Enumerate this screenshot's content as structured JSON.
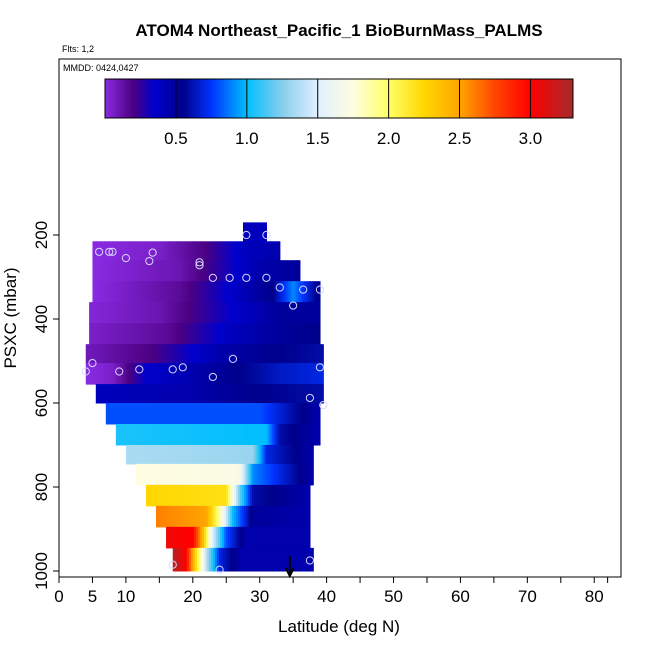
{
  "chart_data": {
    "type": "heatmap",
    "title": "ATOM4 Northeast_Pacific_1 BioBurnMass_PALMS",
    "flights_label": "Flts: 1,2",
    "dates_label": "MMDD: 0424,0427",
    "xlabel": "Latitude (deg N)",
    "ylabel": "PSXC (mbar)",
    "xlim": [
      0,
      84
    ],
    "ylim": [
      1010,
      0
    ],
    "x_ticks": [
      0,
      5,
      10,
      20,
      30,
      40,
      50,
      60,
      70,
      80
    ],
    "x_minor_ticks": [
      15,
      25,
      35,
      45,
      55,
      65,
      75,
      82
    ],
    "y_ticks": [
      200,
      400,
      600,
      800,
      1000
    ],
    "colorbar": {
      "min": 0.0,
      "max": 3.3,
      "ticks": [
        0.5,
        1.0,
        1.5,
        2.0,
        2.5,
        3.0
      ],
      "tick_labels": [
        "0.5",
        "1.0",
        "1.5",
        "2.0",
        "2.5",
        "3.0"
      ],
      "stops": [
        {
          "v": 0.0,
          "c": "#8a2be2"
        },
        {
          "v": 0.2,
          "c": "#4b0082"
        },
        {
          "v": 0.35,
          "c": "#0000cd"
        },
        {
          "v": 0.55,
          "c": "#00008b"
        },
        {
          "v": 0.75,
          "c": "#0033ff"
        },
        {
          "v": 1.0,
          "c": "#00bfff"
        },
        {
          "v": 1.25,
          "c": "#87ceeb"
        },
        {
          "v": 1.5,
          "c": "#e0f0ff"
        },
        {
          "v": 1.75,
          "c": "#fffde0"
        },
        {
          "v": 2.0,
          "c": "#ffff66"
        },
        {
          "v": 2.25,
          "c": "#ffd700"
        },
        {
          "v": 2.5,
          "c": "#ffa500"
        },
        {
          "v": 2.75,
          "c": "#ff4500"
        },
        {
          "v": 3.0,
          "c": "#ff0000"
        },
        {
          "v": 3.3,
          "c": "#a52a2a"
        }
      ]
    },
    "rows": [
      {
        "p0": 170,
        "p1": 215,
        "lat0": 27.5,
        "lat1": 31,
        "segments": [
          {
            "lat": 27.5,
            "v": 0.4
          },
          {
            "lat": 31,
            "v": 0.4
          }
        ]
      },
      {
        "p0": 215,
        "p1": 260,
        "lat0": 5,
        "lat1": 33,
        "segments": [
          {
            "lat": 5,
            "v": 0.0
          },
          {
            "lat": 15,
            "v": 0.05
          },
          {
            "lat": 22,
            "v": 0.2
          },
          {
            "lat": 28,
            "v": 0.4
          },
          {
            "lat": 33,
            "v": 0.45
          }
        ]
      },
      {
        "p0": 260,
        "p1": 310,
        "lat0": 5,
        "lat1": 36,
        "segments": [
          {
            "lat": 5,
            "v": 0.0
          },
          {
            "lat": 18,
            "v": 0.1
          },
          {
            "lat": 25,
            "v": 0.3
          },
          {
            "lat": 30,
            "v": 0.45
          },
          {
            "lat": 36,
            "v": 0.5
          }
        ]
      },
      {
        "p0": 310,
        "p1": 360,
        "lat0": 5,
        "lat1": 39,
        "segments": [
          {
            "lat": 5,
            "v": 0.0
          },
          {
            "lat": 18,
            "v": 0.15
          },
          {
            "lat": 27,
            "v": 0.4
          },
          {
            "lat": 32,
            "v": 0.55
          },
          {
            "lat": 35,
            "v": 0.9
          },
          {
            "lat": 37,
            "v": 0.7
          },
          {
            "lat": 39,
            "v": 0.5
          }
        ]
      },
      {
        "p0": 360,
        "p1": 410,
        "lat0": 4.5,
        "lat1": 39,
        "segments": [
          {
            "lat": 4.5,
            "v": 0.02
          },
          {
            "lat": 15,
            "v": 0.1
          },
          {
            "lat": 26,
            "v": 0.35
          },
          {
            "lat": 33,
            "v": 0.5
          },
          {
            "lat": 39,
            "v": 0.5
          }
        ]
      },
      {
        "p0": 410,
        "p1": 460,
        "lat0": 4.5,
        "lat1": 39,
        "segments": [
          {
            "lat": 4.5,
            "v": 0.05
          },
          {
            "lat": 16,
            "v": 0.15
          },
          {
            "lat": 26,
            "v": 0.4
          },
          {
            "lat": 33,
            "v": 0.5
          },
          {
            "lat": 39,
            "v": 0.55
          }
        ]
      },
      {
        "p0": 460,
        "p1": 505,
        "lat0": 4,
        "lat1": 39.5,
        "segments": [
          {
            "lat": 4,
            "v": 0.08
          },
          {
            "lat": 14,
            "v": 0.2
          },
          {
            "lat": 24,
            "v": 0.45
          },
          {
            "lat": 33,
            "v": 0.55
          },
          {
            "lat": 39.5,
            "v": 0.6
          }
        ]
      },
      {
        "p0": 505,
        "p1": 555,
        "lat0": 4,
        "lat1": 39.5,
        "segments": [
          {
            "lat": 4,
            "v": 0.0
          },
          {
            "lat": 8,
            "v": 0.05
          },
          {
            "lat": 13,
            "v": 0.35
          },
          {
            "lat": 24,
            "v": 0.5
          },
          {
            "lat": 33,
            "v": 0.65
          },
          {
            "lat": 39.5,
            "v": 0.7
          }
        ]
      },
      {
        "p0": 555,
        "p1": 600,
        "lat0": 5.5,
        "lat1": 39.5,
        "segments": [
          {
            "lat": 5.5,
            "v": 0.4
          },
          {
            "lat": 20,
            "v": 0.45
          },
          {
            "lat": 30,
            "v": 0.55
          },
          {
            "lat": 39.5,
            "v": 0.6
          }
        ]
      },
      {
        "p0": 600,
        "p1": 650,
        "lat0": 7,
        "lat1": 39,
        "segments": [
          {
            "lat": 7,
            "v": 0.8
          },
          {
            "lat": 30,
            "v": 0.8
          },
          {
            "lat": 35,
            "v": 0.6
          },
          {
            "lat": 39,
            "v": 0.45
          }
        ]
      },
      {
        "p0": 650,
        "p1": 700,
        "lat0": 8.5,
        "lat1": 39,
        "segments": [
          {
            "lat": 8.5,
            "v": 1.05
          },
          {
            "lat": 31,
            "v": 1.0
          },
          {
            "lat": 33,
            "v": 0.6
          },
          {
            "lat": 39,
            "v": 0.45
          }
        ]
      },
      {
        "p0": 700,
        "p1": 745,
        "lat0": 10,
        "lat1": 38,
        "segments": [
          {
            "lat": 10,
            "v": 1.35
          },
          {
            "lat": 29,
            "v": 1.3
          },
          {
            "lat": 31,
            "v": 0.7
          },
          {
            "lat": 38,
            "v": 0.45
          }
        ]
      },
      {
        "p0": 745,
        "p1": 795,
        "lat0": 11.5,
        "lat1": 38,
        "segments": [
          {
            "lat": 11.5,
            "v": 1.75
          },
          {
            "lat": 27,
            "v": 1.7
          },
          {
            "lat": 29,
            "v": 0.9
          },
          {
            "lat": 38,
            "v": 0.45
          }
        ]
      },
      {
        "p0": 795,
        "p1": 845,
        "lat0": 13,
        "lat1": 37.5,
        "segments": [
          {
            "lat": 13,
            "v": 2.25
          },
          {
            "lat": 25,
            "v": 2.2
          },
          {
            "lat": 27,
            "v": 1.2
          },
          {
            "lat": 29,
            "v": 0.6
          },
          {
            "lat": 37.5,
            "v": 0.45
          }
        ]
      },
      {
        "p0": 845,
        "p1": 895,
        "lat0": 14.5,
        "lat1": 37.5,
        "segments": [
          {
            "lat": 14.5,
            "v": 2.6
          },
          {
            "lat": 22,
            "v": 2.5
          },
          {
            "lat": 24,
            "v": 1.9
          },
          {
            "lat": 26,
            "v": 1.0
          },
          {
            "lat": 29,
            "v": 0.5
          },
          {
            "lat": 37.5,
            "v": 0.45
          }
        ]
      },
      {
        "p0": 895,
        "p1": 945,
        "lat0": 16,
        "lat1": 37.5,
        "segments": [
          {
            "lat": 16,
            "v": 3.05
          },
          {
            "lat": 20,
            "v": 3.0
          },
          {
            "lat": 21.5,
            "v": 2.4
          },
          {
            "lat": 23,
            "v": 1.5
          },
          {
            "lat": 25,
            "v": 0.8
          },
          {
            "lat": 28,
            "v": 0.45
          },
          {
            "lat": 37.5,
            "v": 0.45
          }
        ]
      },
      {
        "p0": 945,
        "p1": 1000,
        "lat0": 17,
        "lat1": 38,
        "segments": [
          {
            "lat": 17,
            "v": 3.25
          },
          {
            "lat": 19,
            "v": 3.0
          },
          {
            "lat": 20.5,
            "v": 2.2
          },
          {
            "lat": 22,
            "v": 1.4
          },
          {
            "lat": 24,
            "v": 0.7
          },
          {
            "lat": 27,
            "v": 0.45
          },
          {
            "lat": 38,
            "v": 0.45
          }
        ]
      }
    ],
    "points": [
      {
        "lat": 28,
        "p": 200
      },
      {
        "lat": 31,
        "p": 200
      },
      {
        "lat": 6,
        "p": 240
      },
      {
        "lat": 7.5,
        "p": 240
      },
      {
        "lat": 8,
        "p": 240
      },
      {
        "lat": 10,
        "p": 255
      },
      {
        "lat": 13.5,
        "p": 262
      },
      {
        "lat": 14,
        "p": 242
      },
      {
        "lat": 21,
        "p": 265
      },
      {
        "lat": 21,
        "p": 272
      },
      {
        "lat": 23,
        "p": 302
      },
      {
        "lat": 25.5,
        "p": 302
      },
      {
        "lat": 28,
        "p": 302
      },
      {
        "lat": 31,
        "p": 302
      },
      {
        "lat": 33,
        "p": 325
      },
      {
        "lat": 36.5,
        "p": 330
      },
      {
        "lat": 39,
        "p": 330
      },
      {
        "lat": 35,
        "p": 368
      },
      {
        "lat": 26,
        "p": 495
      },
      {
        "lat": 5,
        "p": 505
      },
      {
        "lat": 4,
        "p": 525
      },
      {
        "lat": 9,
        "p": 525
      },
      {
        "lat": 12,
        "p": 520
      },
      {
        "lat": 17,
        "p": 520
      },
      {
        "lat": 18.5,
        "p": 515
      },
      {
        "lat": 23,
        "p": 538
      },
      {
        "lat": 39,
        "p": 515
      },
      {
        "lat": 37.5,
        "p": 588
      },
      {
        "lat": 39.5,
        "p": 605
      },
      {
        "lat": 17,
        "p": 985
      },
      {
        "lat": 24,
        "p": 997
      },
      {
        "lat": 37.5,
        "p": 975
      }
    ],
    "marker_latitude": 34.5
  }
}
